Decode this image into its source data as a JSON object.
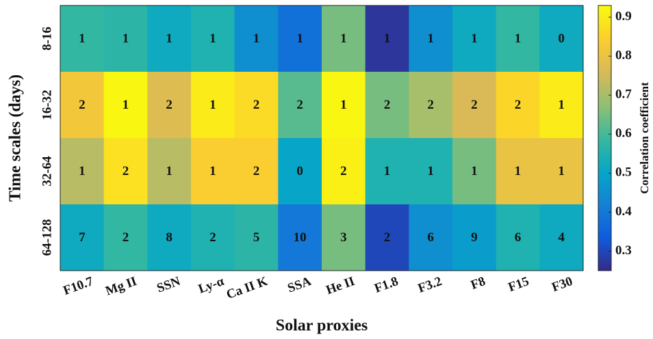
{
  "chart_data": {
    "type": "heatmap",
    "x_label": "Solar proxies",
    "y_label": "Time scales (days)",
    "colorbar_label": "Correlation coefficient",
    "categories": [
      "F10.7",
      "Mg II",
      "SSN",
      "Ly-α",
      "Ca II K",
      "SSA",
      "He II",
      "F1.8",
      "F3.2",
      "F8",
      "F15",
      "F30"
    ],
    "rows": [
      "8-16",
      "16-32",
      "32-64",
      "64-128"
    ],
    "values": [
      [
        0.58,
        0.57,
        0.52,
        0.55,
        0.45,
        0.38,
        0.65,
        0.27,
        0.45,
        0.52,
        0.58,
        0.52
      ],
      [
        0.82,
        0.92,
        0.77,
        0.9,
        0.87,
        0.62,
        0.92,
        0.65,
        0.7,
        0.76,
        0.86,
        0.9
      ],
      [
        0.72,
        0.88,
        0.72,
        0.84,
        0.84,
        0.5,
        0.91,
        0.55,
        0.55,
        0.65,
        0.8,
        0.8
      ],
      [
        0.52,
        0.58,
        0.52,
        0.55,
        0.57,
        0.4,
        0.65,
        0.3,
        0.45,
        0.48,
        0.55,
        0.52
      ]
    ],
    "cell_labels": [
      [
        1,
        1,
        1,
        1,
        1,
        1,
        1,
        1,
        1,
        1,
        1,
        0
      ],
      [
        2,
        1,
        2,
        1,
        2,
        2,
        1,
        2,
        2,
        2,
        2,
        1
      ],
      [
        1,
        2,
        1,
        1,
        2,
        0,
        2,
        1,
        1,
        1,
        1,
        1
      ],
      [
        7,
        2,
        8,
        2,
        5,
        10,
        3,
        2,
        6,
        9,
        6,
        4
      ]
    ],
    "colormap": [
      "#352A87",
      "#0F5CDD",
      "#1481D6",
      "#06A7C6",
      "#38B99E",
      "#92BF73",
      "#D9BA56",
      "#FCCE2E",
      "#F9FB0E"
    ],
    "clim": [
      0.25,
      0.93
    ],
    "cticks": [
      0.3,
      0.4,
      0.5,
      0.6,
      0.7,
      0.8,
      0.9
    ]
  }
}
